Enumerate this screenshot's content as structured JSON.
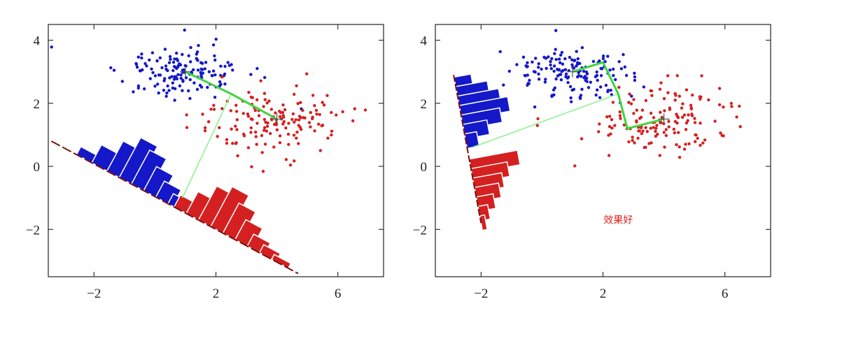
{
  "chart_data": [
    {
      "type": "scatter",
      "panel": "left",
      "xlim": [
        -3.5,
        7.5
      ],
      "ylim": [
        -3.5,
        4.5
      ],
      "xticks": [
        -2,
        2,
        6
      ],
      "yticks": [
        4,
        2,
        0,
        -2
      ],
      "xtick_labels": [
        "−2",
        "2",
        "6"
      ],
      "ytick_labels": [
        "4",
        "2",
        "0",
        "−2"
      ],
      "grid": false,
      "annotation": "",
      "class_colors": {
        "blue": "#1418c8",
        "red": "#d42020"
      },
      "means": {
        "blue": [
          1,
          3.0
        ],
        "red": [
          4.0,
          1.5
        ]
      },
      "projection_line": {
        "p1": [
          -3.4,
          0.8
        ],
        "p2": [
          4.7,
          -3.4
        ]
      },
      "connector": [
        [
          1.0,
          3.0
        ],
        [
          2.5,
          2.3
        ],
        [
          4.0,
          1.5
        ],
        [
          2.5,
          2.3
        ],
        [
          0.9,
          -1.0
        ]
      ],
      "histograms": {
        "blue": {
          "centers": [
            -2.3,
            -1.8,
            -1.3,
            -0.9,
            -0.5,
            -0.1,
            0.3,
            0.7,
            1.1
          ],
          "heights": [
            0.2,
            0.45,
            0.75,
            1.0,
            0.85,
            0.6,
            0.4,
            0.25,
            0.15
          ]
        },
        "red": {
          "centers": [
            0.9,
            1.3,
            1.7,
            2.1,
            2.5,
            2.9,
            3.3,
            3.7,
            4.1
          ],
          "heights": [
            0.3,
            0.55,
            0.85,
            1.0,
            0.75,
            0.5,
            0.3,
            0.2,
            0.12
          ]
        }
      }
    },
    {
      "type": "scatter",
      "panel": "right",
      "xlim": [
        -3.5,
        7.5
      ],
      "ylim": [
        -3.5,
        4.5
      ],
      "xticks": [
        -2,
        2,
        6
      ],
      "yticks": [
        4,
        2,
        0,
        -2
      ],
      "xtick_labels": [
        "−2",
        "2",
        "6"
      ],
      "ytick_labels": [
        "4",
        "2",
        "0",
        "−2"
      ],
      "grid": false,
      "annotation": "效果好",
      "class_colors": {
        "blue": "#1418c8",
        "red": "#d42020"
      },
      "means": {
        "blue": [
          1,
          3.0
        ],
        "red": [
          4.0,
          1.5
        ]
      },
      "projection_line": {
        "p1": [
          -2.9,
          2.9
        ],
        "p2": [
          -2.0,
          -1.8
        ]
      },
      "connector": [
        [
          1.0,
          3.0
        ],
        [
          2.0,
          3.3
        ],
        [
          2.5,
          2.3
        ],
        [
          2.8,
          1.2
        ],
        [
          4.0,
          1.5
        ],
        [
          2.8,
          1.2
        ],
        [
          2.5,
          2.3
        ],
        [
          -2.3,
          0.6
        ]
      ],
      "histograms": {
        "blue": {
          "centers": [
            2.6,
            2.3,
            2.0,
            1.7,
            1.4,
            1.1,
            0.8
          ],
          "heights": [
            0.35,
            0.65,
            0.85,
            1.0,
            0.8,
            0.5,
            0.25
          ]
        },
        "red": {
          "centers": [
            0.0,
            -0.3,
            -0.6,
            -0.9,
            -1.2,
            -1.5,
            -1.8
          ],
          "heights": [
            1.0,
            0.75,
            0.6,
            0.5,
            0.35,
            0.2,
            0.1
          ]
        }
      }
    }
  ]
}
